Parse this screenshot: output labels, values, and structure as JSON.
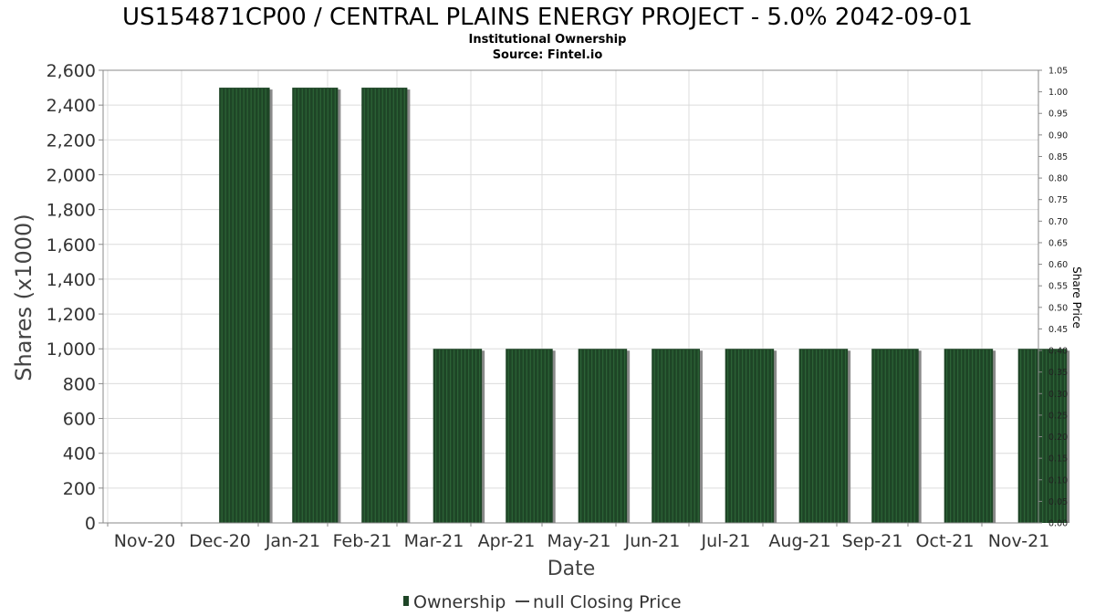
{
  "header": {
    "title": "US154871CP00 / CENTRAL PLAINS ENERGY PROJECT - 5.0% 2042-09-01",
    "subtitle": "Institutional Ownership",
    "source": "Source: Fintel.io"
  },
  "colors": {
    "bar_fill": "#1e4526",
    "bar_stripe": "#2f6a3a",
    "bar_shadow": "#8a8a8a",
    "grid": "#dcdcdc",
    "axis": "#888888"
  },
  "chart_data": {
    "type": "bar",
    "title": "US154871CP00 / CENTRAL PLAINS ENERGY PROJECT - 5.0% 2042-09-01",
    "xlabel": "Date",
    "ylabel": "Shares (x1000)",
    "y2label": "Share Price",
    "x_tick_labels": [
      "Nov-20",
      "Dec-20",
      "Jan-21",
      "Feb-21",
      "Mar-21",
      "Apr-21",
      "May-21",
      "Jun-21",
      "Jul-21",
      "Aug-21",
      "Sep-21",
      "Oct-21",
      "Nov-21"
    ],
    "categories": [
      "Dec-20",
      "Jan-21",
      "Feb-21",
      "Mar-21",
      "Apr-21",
      "May-21",
      "Jun-21",
      "Jul-21",
      "Aug-21",
      "Sep-21",
      "Oct-21",
      "Nov-21"
    ],
    "series": [
      {
        "name": "Ownership",
        "values": [
          2500,
          2500,
          2500,
          1000,
          1000,
          1000,
          1000,
          1000,
          1000,
          1000,
          1000,
          1000
        ]
      }
    ],
    "ylim": [
      0,
      2600
    ],
    "y_ticks": [
      "0",
      "200",
      "400",
      "600",
      "800",
      "1,000",
      "1,200",
      "1,400",
      "1,600",
      "1,800",
      "2,000",
      "2,200",
      "2,400",
      "2,600"
    ],
    "y2lim": [
      0,
      1.05
    ],
    "y2_ticks": [
      "0.00",
      "0.05",
      "0.10",
      "0.15",
      "0.20",
      "0.25",
      "0.30",
      "0.35",
      "0.40",
      "0.45",
      "0.50",
      "0.55",
      "0.60",
      "0.65",
      "0.70",
      "0.75",
      "0.80",
      "0.85",
      "0.90",
      "0.95",
      "1.00",
      "1.05"
    ],
    "grid": true,
    "legend": {
      "placement": "bottom-center",
      "items": [
        {
          "label": "Ownership",
          "marker": "bar"
        },
        {
          "label": "null Closing Price",
          "marker": "line"
        }
      ]
    }
  }
}
